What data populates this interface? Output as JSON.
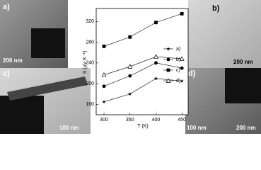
{
  "chart_data": {
    "type": "line",
    "x_label": "T (K)",
    "y_label": "S (μV K⁻¹)",
    "x": [
      300,
      350,
      400,
      450
    ],
    "series": [
      {
        "name": "a)",
        "color": "#000000",
        "marker": "star",
        "values": [
          165,
          180,
          210,
          205
        ]
      },
      {
        "name": "b)",
        "color": "#000000",
        "marker": "circle",
        "values": [
          195,
          215,
          240,
          230
        ]
      },
      {
        "name": "c)",
        "color": "#000000",
        "marker": "square",
        "values": [
          272,
          290,
          318,
          335
        ]
      },
      {
        "name": "d)",
        "color": "#000000",
        "marker": "open-triangle",
        "values": [
          217,
          233,
          252,
          248
        ]
      }
    ],
    "xlim": [
      285,
      462
    ],
    "ylim": [
      140,
      345
    ],
    "xticks": [
      300,
      350,
      400,
      450
    ],
    "yticks": [
      160,
      200,
      240,
      280,
      320
    ],
    "grid": false,
    "legend": "right"
  },
  "panels": {
    "a": {
      "label": "a)",
      "scale": "200 nm"
    },
    "b": {
      "label": "b)",
      "scale": "200 nm"
    },
    "c": {
      "label": "c)",
      "scale": "100 nm"
    },
    "d": {
      "label": "d)",
      "scale": "100 nm"
    }
  }
}
